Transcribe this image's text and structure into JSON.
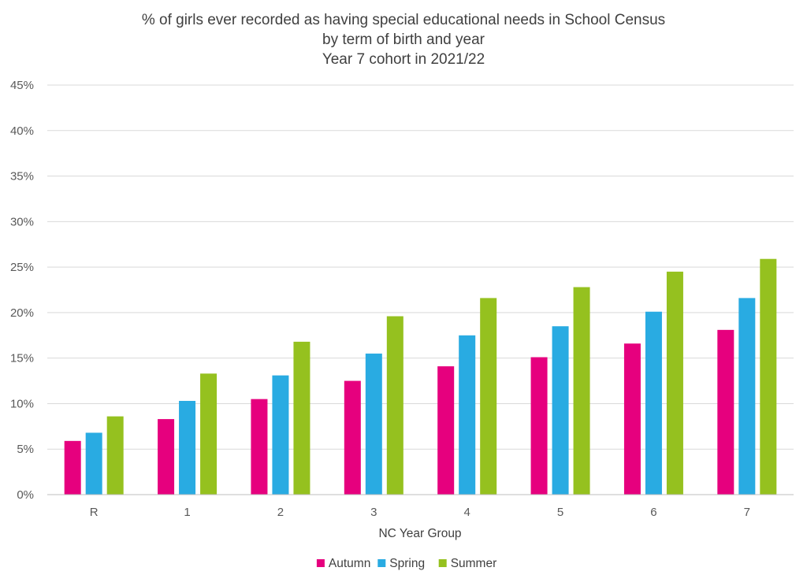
{
  "chart_data": {
    "type": "bar",
    "title": [
      "% of girls ever recorded as having special educational needs in School Census",
      "by term of birth and year",
      "Year 7 cohort in 2021/22"
    ],
    "xlabel": "NC Year Group",
    "ylabel": "",
    "categories": [
      "R",
      "1",
      "2",
      "3",
      "4",
      "5",
      "6",
      "7"
    ],
    "ylim": [
      0,
      45
    ],
    "yticks": [
      0,
      5,
      10,
      15,
      20,
      25,
      30,
      35,
      40,
      45
    ],
    "ytick_labels": [
      "0%",
      "5%",
      "10%",
      "15%",
      "20%",
      "25%",
      "30%",
      "35%",
      "40%",
      "45%"
    ],
    "grid": true,
    "legend_position": "bottom",
    "series": [
      {
        "name": "Autumn",
        "color": "#e6007e",
        "values": [
          5.9,
          8.3,
          10.5,
          12.5,
          14.1,
          15.1,
          16.6,
          18.1
        ]
      },
      {
        "name": "Spring",
        "color": "#29abe2",
        "values": [
          6.8,
          10.3,
          13.1,
          15.5,
          17.5,
          18.5,
          20.1,
          21.6
        ]
      },
      {
        "name": "Summer",
        "color": "#95c11f",
        "values": [
          8.6,
          13.3,
          16.8,
          19.6,
          21.6,
          22.8,
          24.5,
          25.9
        ]
      }
    ]
  }
}
